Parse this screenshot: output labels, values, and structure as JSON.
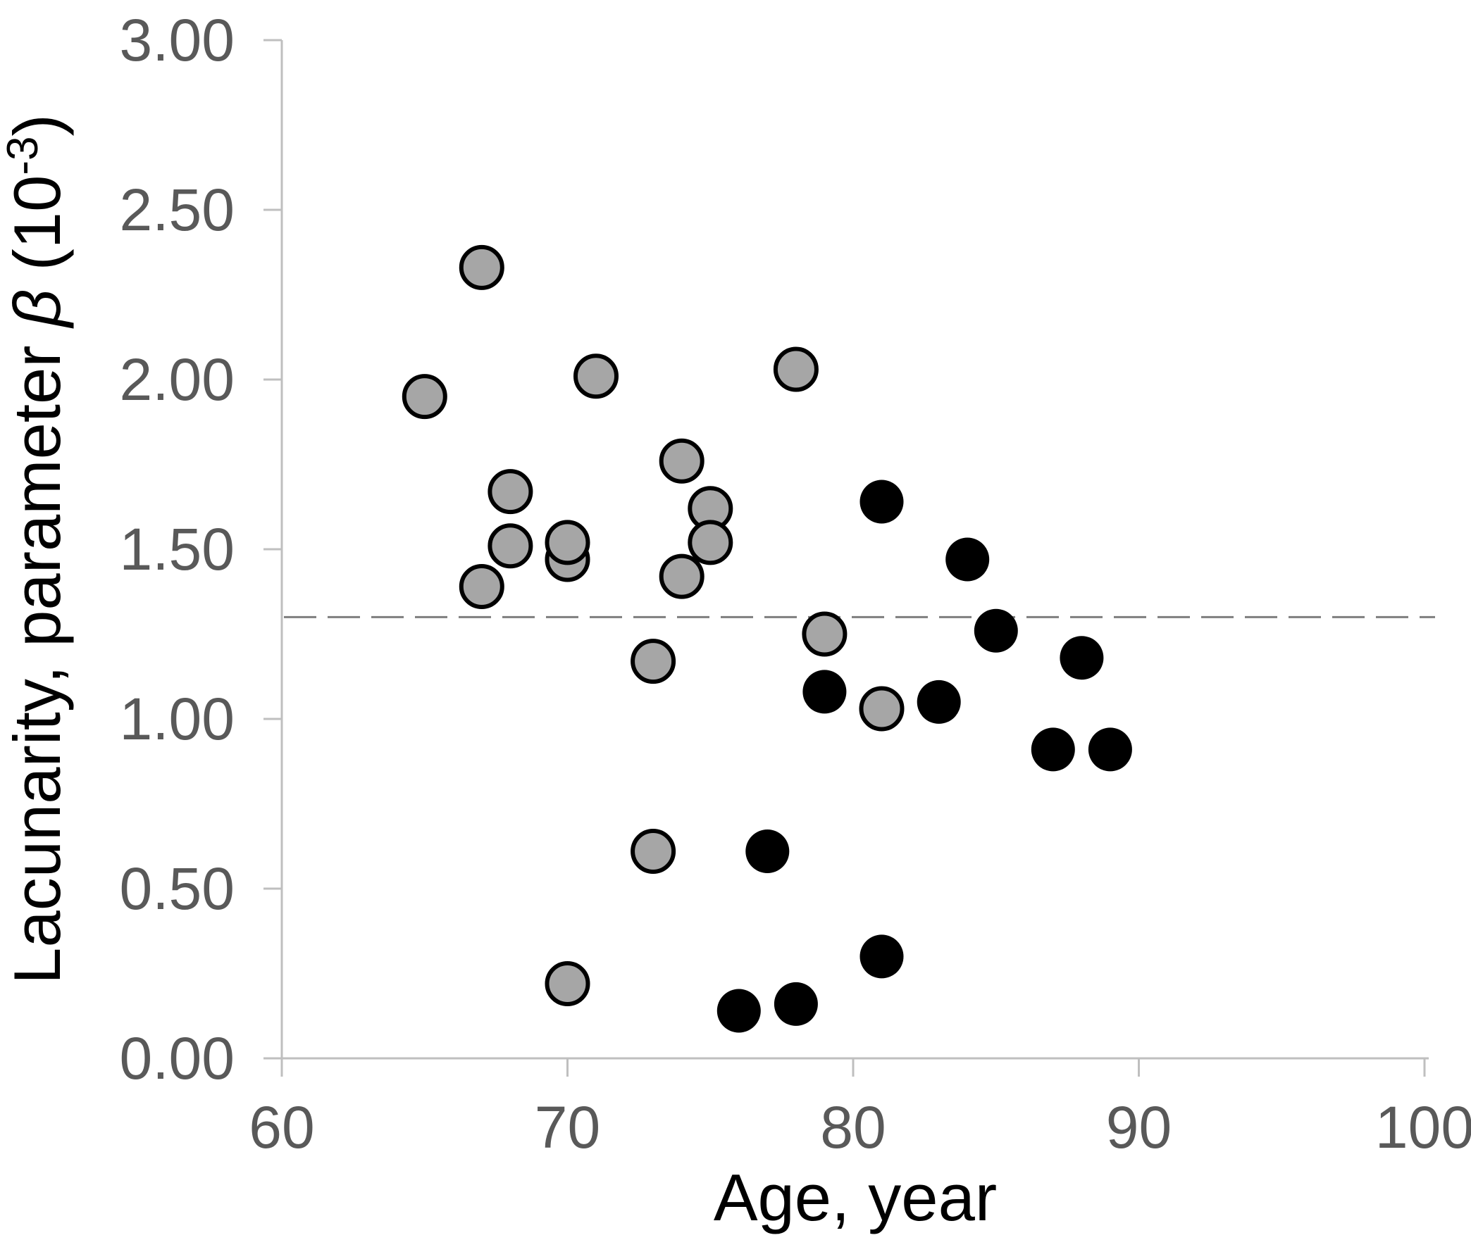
{
  "figure": {
    "background": "#FFFFFF"
  },
  "colors": {
    "axis_line": "#BFBFBF",
    "tick_mark": "#BFBFBF",
    "tick_label": "#595959",
    "axis_title": "#000000",
    "reference_line": "#7F7F7F",
    "gray_marker_fill": "#A6A6A6",
    "black_marker_fill": "#000000",
    "marker_stroke": "#000000",
    "background": "#FFFFFF"
  },
  "chart_data": {
    "type": "scatter",
    "title": "",
    "xlabel": "Age, year",
    "ylabel": "Lacunarity, parameter β (10⁻³)",
    "ylabel_parts": {
      "prefix": "Lacunarity, parameter ",
      "beta": "β",
      "after_beta": " (10",
      "superscript": "-3",
      "close": ")"
    },
    "xlim": [
      60,
      100
    ],
    "ylim": [
      0.0,
      3.0
    ],
    "x_ticks": [
      60,
      70,
      80,
      90,
      100
    ],
    "x_tick_labels": [
      "60",
      "70",
      "80",
      "90",
      "100"
    ],
    "y_ticks": [
      0.0,
      0.5,
      1.0,
      1.5,
      2.0,
      2.5,
      3.0
    ],
    "y_tick_labels": [
      "0.00",
      "0.50",
      "1.00",
      "1.50",
      "2.00",
      "2.50",
      "3.00"
    ],
    "grid": false,
    "legend_position": "none",
    "reference_line": {
      "y": 1.3,
      "style": "dashed",
      "color": "#7F7F7F"
    },
    "series": [
      {
        "name": "gray-circle-group",
        "marker": "circle",
        "fill": "#A6A6A6",
        "stroke": "#000000",
        "points": [
          [
            65,
            1.95
          ],
          [
            67,
            2.33
          ],
          [
            67,
            1.39
          ],
          [
            68,
            1.67
          ],
          [
            68,
            1.51
          ],
          [
            70,
            1.47
          ],
          [
            70,
            1.52
          ],
          [
            70,
            0.22
          ],
          [
            71,
            2.01
          ],
          [
            73,
            1.17
          ],
          [
            73,
            0.61
          ],
          [
            74,
            1.76
          ],
          [
            74,
            1.42
          ],
          [
            75,
            1.62
          ],
          [
            75,
            1.52
          ],
          [
            78,
            2.03
          ],
          [
            79,
            1.25
          ],
          [
            81,
            1.03
          ]
        ]
      },
      {
        "name": "black-circle-group",
        "marker": "circle",
        "fill": "#000000",
        "stroke": "#000000",
        "points": [
          [
            76,
            0.14
          ],
          [
            77,
            0.61
          ],
          [
            78,
            0.16
          ],
          [
            79,
            1.08
          ],
          [
            81,
            1.64
          ],
          [
            81,
            0.3
          ],
          [
            83,
            1.05
          ],
          [
            84,
            1.47
          ],
          [
            85,
            1.26
          ],
          [
            87,
            0.91
          ],
          [
            88,
            1.18
          ],
          [
            89,
            0.91
          ]
        ]
      }
    ]
  }
}
